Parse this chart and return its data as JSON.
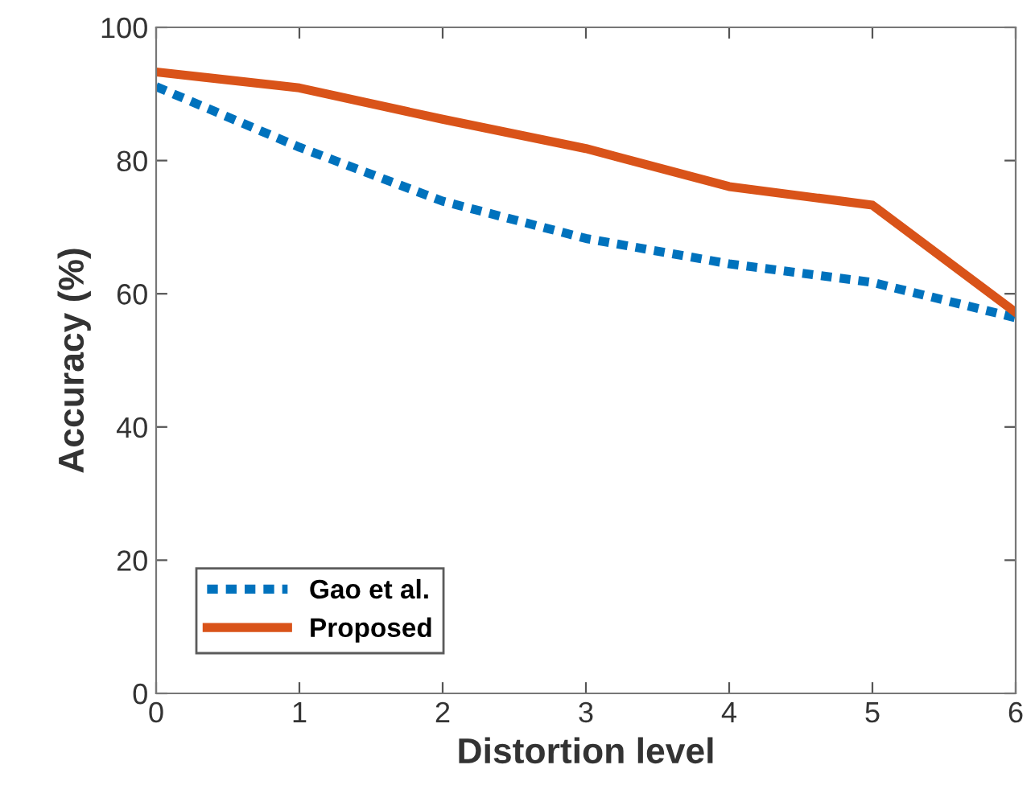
{
  "chart_data": {
    "type": "line",
    "xlabel": "Distortion level",
    "ylabel": "Accuracy (%)",
    "x": [
      0,
      1,
      2,
      3,
      4,
      5,
      6
    ],
    "series": [
      {
        "name": "Gao et al.",
        "color": "#0072bd",
        "line_style": "dotted",
        "values": [
          91.1,
          82.0,
          73.9,
          68.3,
          64.5,
          61.7,
          56.4
        ]
      },
      {
        "name": "Proposed",
        "color": "#d95319",
        "line_style": "solid",
        "values": [
          93.3,
          90.9,
          86.2,
          81.8,
          76.1,
          73.3,
          57.2
        ]
      }
    ],
    "xlim": [
      0,
      6
    ],
    "xticks": [
      0,
      1,
      2,
      3,
      4,
      5,
      6
    ],
    "ylim": [
      0,
      100
    ],
    "yticks": [
      0,
      20,
      40,
      60,
      80,
      100
    ],
    "grid": false,
    "legend": "bottom left",
    "marker": "none"
  }
}
